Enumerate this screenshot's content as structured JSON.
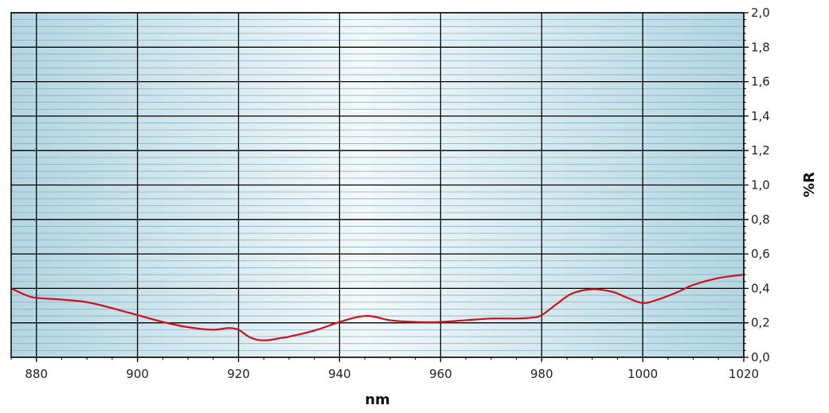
{
  "chart_data": {
    "type": "line",
    "title": "",
    "xlabel": "nm",
    "ylabel": "%R",
    "xlim": [
      875,
      1020
    ],
    "ylim": [
      0.0,
      2.0
    ],
    "x_ticks": [
      880,
      900,
      920,
      940,
      960,
      980,
      1000,
      1020
    ],
    "x_tick_labels": [
      "880",
      "900",
      "920",
      "940",
      "960",
      "980",
      "1000",
      "1020"
    ],
    "y_ticks": [
      0.0,
      0.2,
      0.4,
      0.6,
      0.8,
      1.0,
      1.2,
      1.4,
      1.6,
      1.8,
      2.0
    ],
    "y_tick_labels": [
      "0,0",
      "0,2",
      "0,4",
      "0,6",
      "0,8",
      "1,0",
      "1,2",
      "1,4",
      "1,6",
      "1,8",
      "2,0"
    ],
    "y_axis_position": "right",
    "grid": true,
    "minor_grid_step": 0.04,
    "series": [
      {
        "color": "#d0101c",
        "x": [
          875,
          878,
          880,
          885,
          890,
          895,
          900,
          905,
          910,
          915,
          918,
          920,
          922,
          924,
          926,
          928,
          930,
          935,
          940,
          943,
          945,
          947,
          950,
          955,
          960,
          965,
          970,
          975,
          978,
          980,
          983,
          986,
          990,
          994,
          997,
          1000,
          1003,
          1007,
          1010,
          1015,
          1020
        ],
        "y": [
          0.4,
          0.36,
          0.345,
          0.335,
          0.32,
          0.285,
          0.245,
          0.205,
          0.175,
          0.16,
          0.17,
          0.16,
          0.12,
          0.1,
          0.1,
          0.11,
          0.12,
          0.155,
          0.205,
          0.23,
          0.24,
          0.235,
          0.215,
          0.205,
          0.205,
          0.215,
          0.225,
          0.225,
          0.23,
          0.245,
          0.31,
          0.37,
          0.395,
          0.38,
          0.345,
          0.315,
          0.335,
          0.38,
          0.42,
          0.46,
          0.48
        ]
      }
    ],
    "colors": {
      "plot_edge": "#b2d6e2",
      "plot_center": "#f3f8f9",
      "minor_grid": "#8ab0c4",
      "major_grid": "#000000",
      "axis_tick_text": "#222222"
    }
  }
}
